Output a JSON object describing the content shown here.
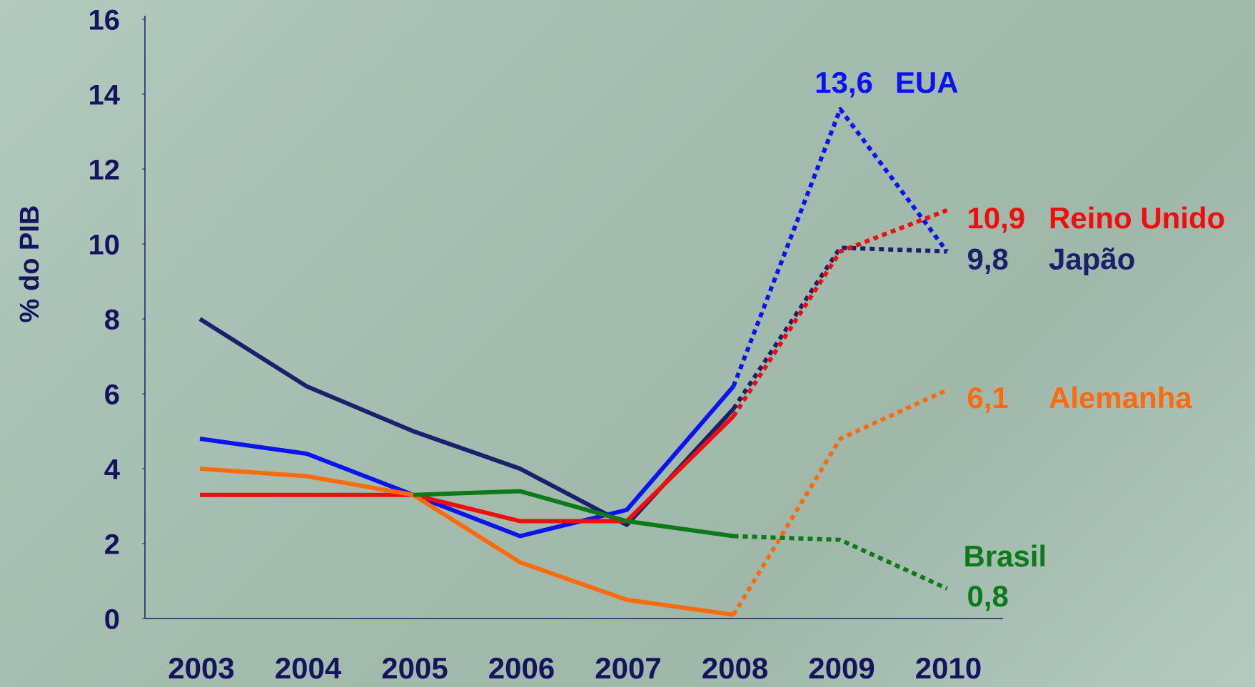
{
  "chart_data": {
    "type": "line",
    "y_label": "% do PIB",
    "categories": [
      "2003",
      "2004",
      "2005",
      "2006",
      "2007",
      "2008",
      "2009",
      "2010"
    ],
    "ylim": [
      0,
      16
    ],
    "yticks": [
      0,
      2,
      4,
      6,
      8,
      10,
      12,
      14,
      16
    ],
    "projection_from": "2008",
    "series": [
      {
        "name": "Japão",
        "color": "#1c1f6b",
        "values": [
          8.0,
          6.2,
          5.0,
          4.0,
          2.5,
          5.6,
          9.9,
          9.8
        ],
        "value_labels": [
          null,
          null,
          null,
          null,
          null,
          null,
          null,
          "9,8"
        ]
      },
      {
        "name": "EUA",
        "color": "#0a14f0",
        "values": [
          4.8,
          4.4,
          3.3,
          2.2,
          2.9,
          6.2,
          13.6,
          9.8
        ],
        "value_labels": [
          null,
          null,
          null,
          null,
          null,
          null,
          "13,6",
          null
        ]
      },
      {
        "name": "Reino Unido",
        "color": "#f20d0d",
        "values": [
          3.3,
          3.3,
          3.3,
          2.6,
          2.6,
          5.4,
          9.8,
          10.9
        ],
        "value_labels": [
          null,
          null,
          null,
          null,
          null,
          null,
          null,
          "10,9"
        ]
      },
      {
        "name": "Alemanha",
        "color": "#ff6a0d",
        "values": [
          4.0,
          3.8,
          3.3,
          1.5,
          0.5,
          0.1,
          4.8,
          6.1
        ],
        "value_labels": [
          null,
          null,
          null,
          null,
          null,
          null,
          null,
          "6,1"
        ]
      },
      {
        "name": "Brasil",
        "color": "#0b7a17",
        "values": [
          null,
          null,
          3.3,
          3.4,
          2.6,
          2.2,
          2.1,
          0.8
        ],
        "value_labels": [
          null,
          null,
          null,
          null,
          null,
          null,
          null,
          "0,8"
        ]
      }
    ]
  }
}
